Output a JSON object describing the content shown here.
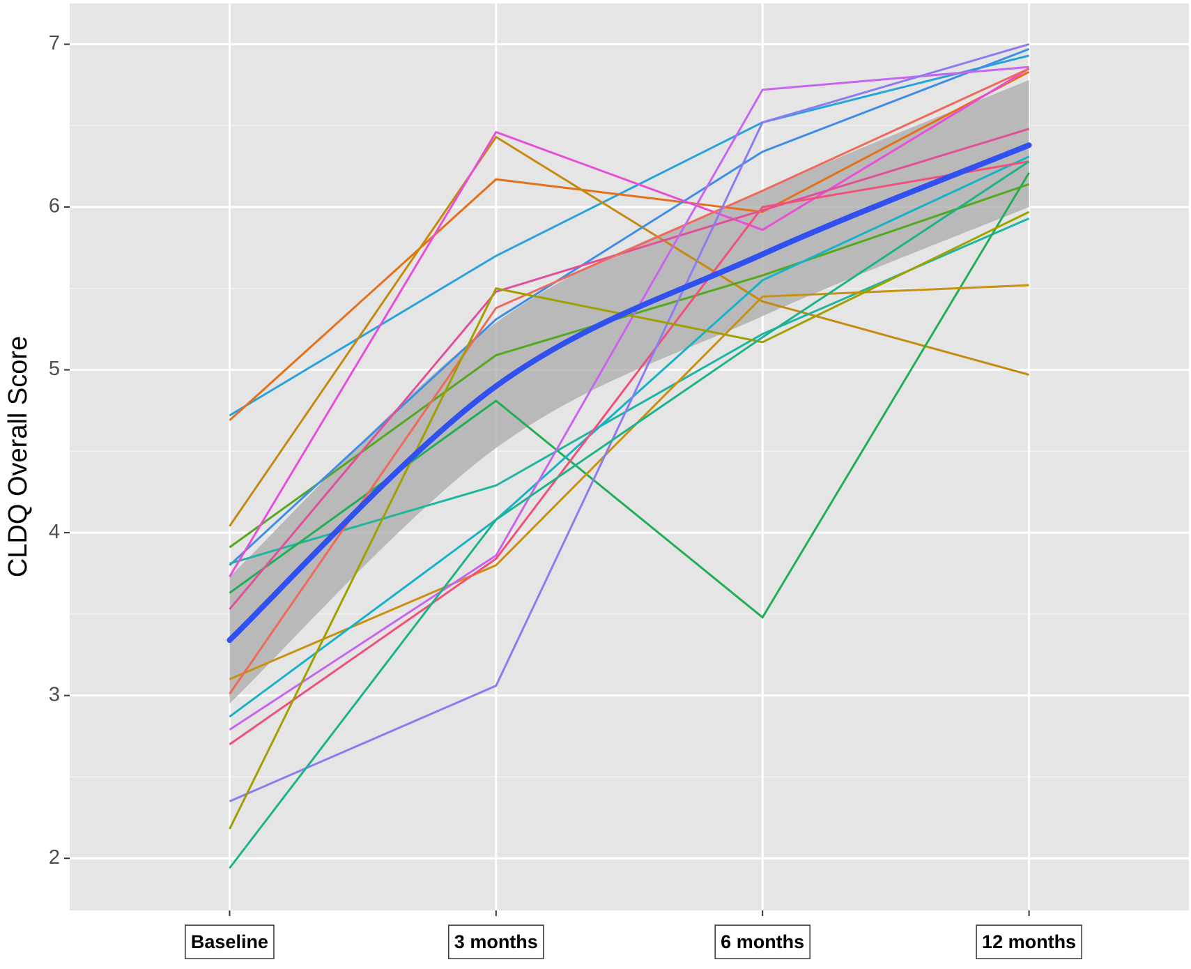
{
  "chart_data": {
    "type": "line",
    "y_label": "CLDQ Overall Score",
    "categories": [
      "Baseline",
      "3 months",
      "6 months",
      "12 months"
    ],
    "ylim": [
      1.68,
      7.25
    ],
    "yticks": [
      2,
      3,
      4,
      5,
      6,
      7
    ],
    "grid": true,
    "series": [
      {
        "color": "#29a3dd",
        "values": [
          4.72,
          5.7,
          6.52,
          6.93
        ]
      },
      {
        "color": "#e4711a",
        "values": [
          4.69,
          6.17,
          5.97,
          6.83
        ]
      },
      {
        "color": "#c58a10",
        "values": [
          4.04,
          6.43,
          5.42,
          4.97
        ]
      },
      {
        "color": "#53a81e",
        "values": [
          3.91,
          5.09,
          5.58,
          6.14
        ]
      },
      {
        "color": "#3e8ee8",
        "values": [
          3.8,
          5.31,
          6.34,
          6.97
        ]
      },
      {
        "color": "#1fb5a0",
        "values": [
          3.81,
          4.29,
          5.22,
          5.93
        ]
      },
      {
        "color": "#e84fd8",
        "values": [
          3.73,
          6.46,
          5.86,
          6.85
        ]
      },
      {
        "color": "#22ad57",
        "values": [
          3.63,
          4.81,
          3.48,
          6.21
        ]
      },
      {
        "color": "#e0509a",
        "values": [
          3.53,
          5.48,
          5.98,
          6.48
        ]
      },
      {
        "color": "#c99112",
        "values": [
          3.1,
          3.8,
          5.45,
          5.52
        ]
      },
      {
        "color": "#ee6a5a",
        "values": [
          3.01,
          5.38,
          6.1,
          6.85
        ]
      },
      {
        "color": "#16b2c8",
        "values": [
          2.87,
          4.08,
          5.55,
          6.31
        ]
      },
      {
        "color": "#c865f0",
        "values": [
          2.79,
          3.86,
          6.72,
          6.86
        ]
      },
      {
        "color": "#f0507a",
        "values": [
          2.7,
          3.84,
          6.0,
          6.28
        ]
      },
      {
        "color": "#8c7cf0",
        "values": [
          2.35,
          3.06,
          6.52,
          7.0
        ]
      },
      {
        "color": "#a0a000",
        "values": [
          2.18,
          5.5,
          5.17,
          5.97
        ]
      },
      {
        "color": "#1db38a",
        "values": [
          1.94,
          4.08,
          5.2,
          6.28
        ]
      }
    ],
    "smooth": {
      "color": "#3050f0",
      "ribbon_color": "#a9a9a9",
      "values": [
        3.34,
        4.9,
        5.71,
        6.38
      ],
      "lower": [
        2.95,
        4.52,
        5.33,
        6.0
      ],
      "upper": [
        3.73,
        5.29,
        6.1,
        6.78
      ]
    }
  }
}
